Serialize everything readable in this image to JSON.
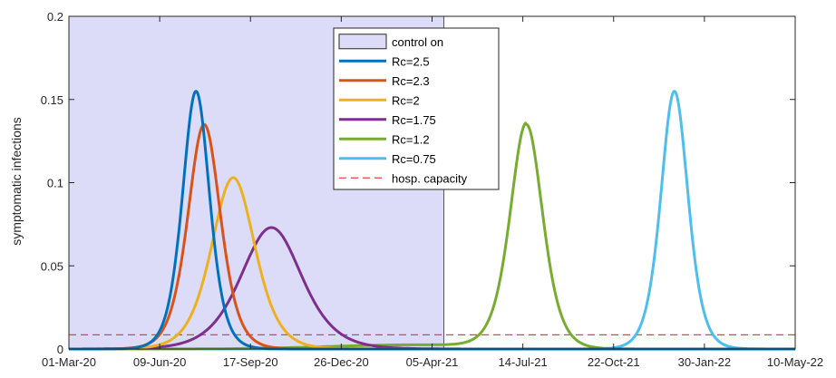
{
  "chart_data": {
    "type": "line",
    "title": "",
    "xlabel": "",
    "ylabel": "symptomatic infections",
    "x_ticks": [
      "01-Mar-20",
      "09-Jun-20",
      "17-Sep-20",
      "26-Dec-20",
      "05-Apr-21",
      "14-Jul-21",
      "22-Oct-21",
      "30-Jan-22",
      "10-May-22"
    ],
    "x_range": [
      "01-Mar-20",
      "10-May-22"
    ],
    "xlim_days": [
      0,
      800
    ],
    "ylim": [
      0,
      0.2
    ],
    "y_ticks": [
      0,
      0.05,
      0.1,
      0.15,
      0.2
    ],
    "y_tick_labels": [
      "0",
      "0.05",
      "0.1",
      "0.15",
      "0.2"
    ],
    "control_on": {
      "label": "control on",
      "start": "01-Mar-20",
      "end": "18-Apr-21",
      "start_day": 0,
      "end_day": 413,
      "color": "#dcdcf8"
    },
    "hosp_capacity": {
      "label": "hosp. capacity",
      "value": 0.0085,
      "color": "#e8423a"
    },
    "legend_position": "top-center",
    "series": [
      {
        "name": "Rc=2.5",
        "color": "#0072bd",
        "peak_day": 140,
        "peak": 0.155,
        "width": 20,
        "tail": 0
      },
      {
        "name": "Rc=2.3",
        "color": "#d95319",
        "peak_day": 149,
        "peak": 0.135,
        "width": 24,
        "tail": 0
      },
      {
        "name": "Rc=2",
        "color": "#edb120",
        "peak_day": 181,
        "peak": 0.103,
        "width": 32,
        "tail": 0
      },
      {
        "name": "Rc=1.75",
        "color": "#7e2f8e",
        "peak_day": 223,
        "peak": 0.073,
        "width": 45,
        "tail": 0
      },
      {
        "name": "Rc=1.2",
        "color": "#77ac30",
        "peak_day": 504,
        "peak": 0.135,
        "width": 24,
        "tail": 1
      },
      {
        "name": "Rc=0.75",
        "color": "#4dbeee",
        "peak_day": 667,
        "peak": 0.155,
        "width": 20,
        "tail": 0
      }
    ]
  }
}
